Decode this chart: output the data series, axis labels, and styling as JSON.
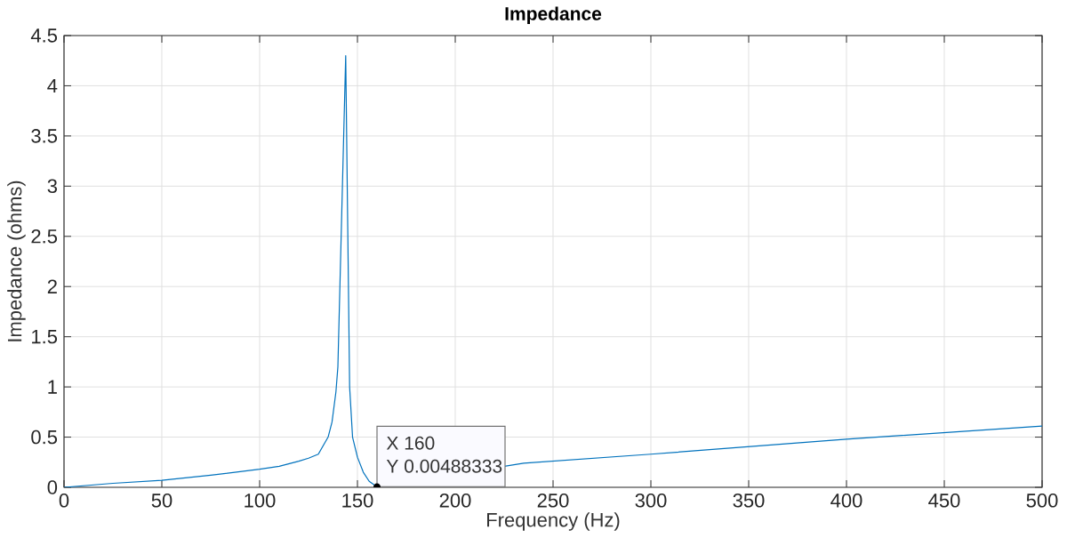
{
  "chart_data": {
    "type": "line",
    "title": "Impedance",
    "xlabel": "Frequency (Hz)",
    "ylabel": "Impedance (ohms)",
    "x": [
      0,
      25,
      50,
      75,
      100,
      110,
      120,
      125,
      130,
      135,
      137,
      139,
      140,
      144,
      146,
      147.5,
      150,
      153,
      156,
      160,
      235,
      300,
      400,
      500
    ],
    "series": [
      {
        "color": "#0072bd",
        "values": [
          0,
          0.04,
          0.07,
          0.12,
          0.18,
          0.21,
          0.26,
          0.29,
          0.33,
          0.5,
          0.65,
          0.95,
          1.2,
          4.3,
          1.0,
          0.5,
          0.3,
          0.15,
          0.06,
          0.00488333,
          0.24,
          0.33,
          0.48,
          0.61
        ]
      }
    ],
    "xlim": [
      0,
      500
    ],
    "ylim": [
      0,
      4.5
    ],
    "xticks": [
      0,
      50,
      100,
      150,
      200,
      250,
      300,
      350,
      400,
      450,
      500
    ],
    "yticks": [
      0,
      0.5,
      1,
      1.5,
      2,
      2.5,
      3,
      3.5,
      4,
      4.5
    ],
    "grid": true,
    "annotations": [
      {
        "text": "X 160",
        "x": 160,
        "y": 0.00488333
      },
      {
        "text": "Y 0.00488333",
        "x": 160,
        "y": 0.00488333
      }
    ]
  }
}
